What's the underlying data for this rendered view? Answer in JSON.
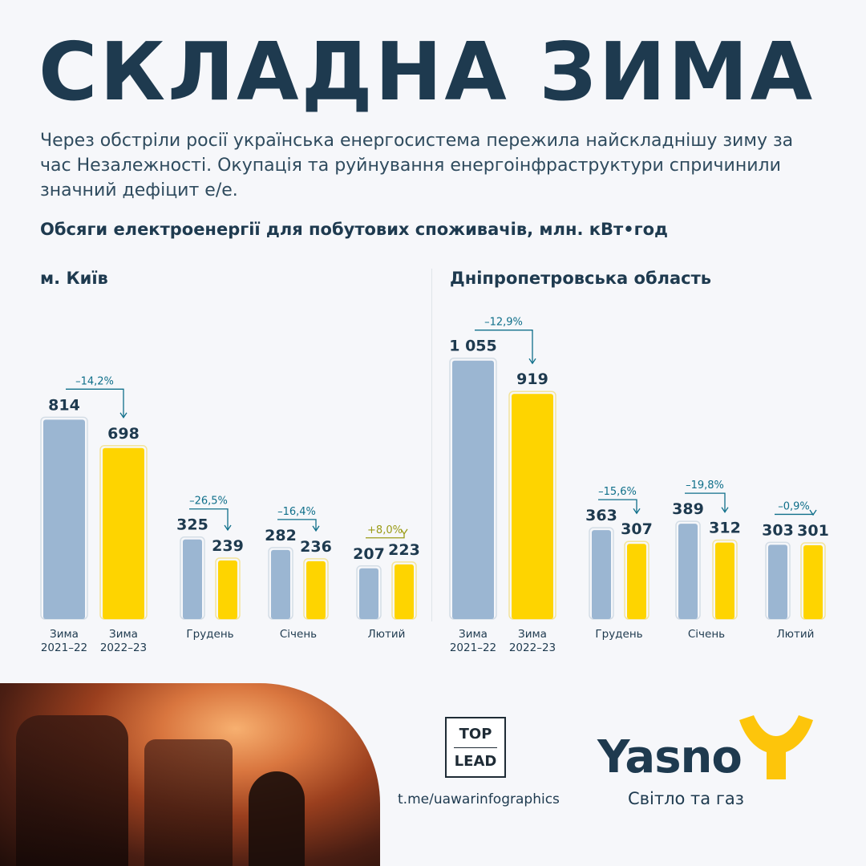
{
  "header": {
    "title": "СКЛАДНА ЗИМА",
    "lead": "Через обстріли росії українська енергосистема пережила найскладнішу зиму за час Незалежності. Окупація та руйнування енергоінфраструктури спричинили значний дефіцит е/е.",
    "subtitle": "Обсяги електроенергії для побутових споживачів, млн. кВт•год"
  },
  "colors": {
    "bar_prev": "#9bb6d2",
    "bar_curr": "#fed400",
    "arrow_negative": "#0f6f8a",
    "arrow_positive": "#9a9b16",
    "text_dark": "#1e3a4f"
  },
  "chart_data": [
    {
      "type": "bar",
      "title": "м. Київ",
      "groups": [
        {
          "label": [
            "Зима",
            "2021–22"
          ],
          "values": [
            814
          ],
          "wide": true
        },
        {
          "label": [
            "Зима",
            "2022–23"
          ],
          "values": [
            698
          ],
          "wide": true
        },
        {
          "label": [
            "Грудень"
          ],
          "values": [
            325,
            239
          ],
          "change": "–26,5%"
        },
        {
          "label": [
            "Січень"
          ],
          "values": [
            282,
            236
          ],
          "change": "–16,4%"
        },
        {
          "label": [
            "Лютий"
          ],
          "values": [
            207,
            223
          ],
          "change": "+8,0%"
        }
      ],
      "winter_change": "–14,2%",
      "value_labels": {
        "winter_prev": "814",
        "winter_curr": "698",
        "dec_prev": "325",
        "dec_curr": "239",
        "jan_prev": "282",
        "jan_curr": "236",
        "feb_prev": "207",
        "feb_curr": "223"
      }
    },
    {
      "type": "bar",
      "title": "Дніпропетровська область",
      "groups": [
        {
          "label": [
            "Зима",
            "2021–22"
          ],
          "values": [
            1055
          ],
          "wide": true
        },
        {
          "label": [
            "Зима",
            "2022–23"
          ],
          "values": [
            919
          ],
          "wide": true
        },
        {
          "label": [
            "Грудень"
          ],
          "values": [
            363,
            307
          ],
          "change": "–15,6%"
        },
        {
          "label": [
            "Січень"
          ],
          "values": [
            389,
            312
          ],
          "change": "–19,8%"
        },
        {
          "label": [
            "Лютий"
          ],
          "values": [
            303,
            301
          ],
          "change": "–0,9%"
        }
      ],
      "winter_change": "–12,9%",
      "value_labels": {
        "winter_prev": "1 055",
        "winter_curr": "919",
        "dec_prev": "363",
        "dec_curr": "307",
        "jan_prev": "389",
        "jan_curr": "312",
        "feb_prev": "303",
        "feb_curr": "301"
      }
    }
  ],
  "footer": {
    "toplead_top": "TOP",
    "toplead_bottom": "LEAD",
    "link": "t.me/uawarinfographics",
    "brand_name": "Yasno",
    "brand_tagline": "Світло та газ",
    "photo": "fire-damaged-power-equipment-photo"
  }
}
